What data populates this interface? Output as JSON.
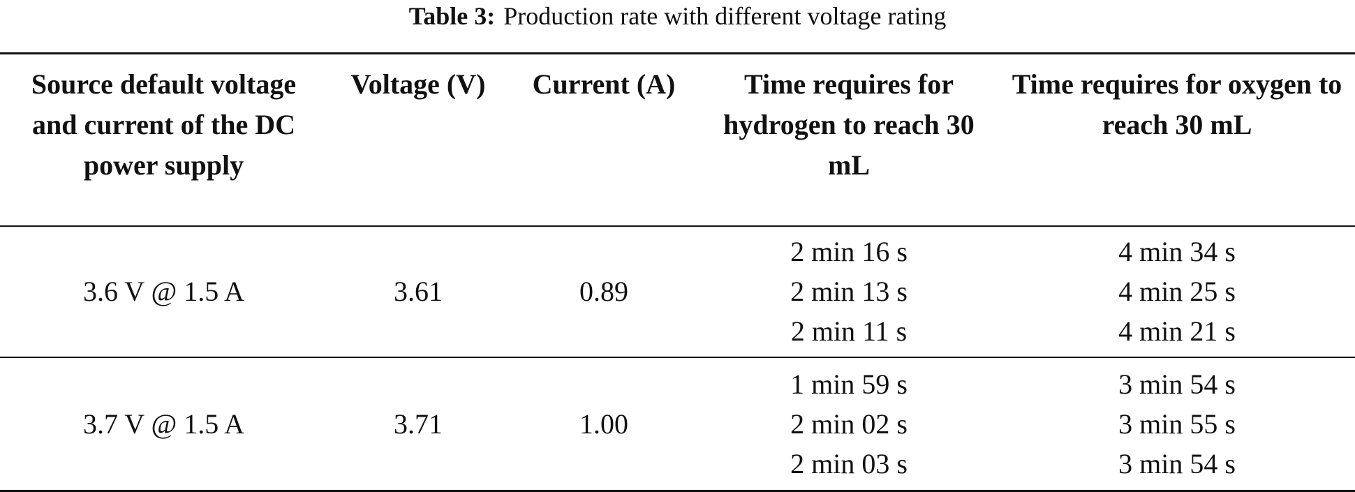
{
  "caption": {
    "label": "Table 3:",
    "text": "Production rate with different voltage rating"
  },
  "table": {
    "headers": [
      "Source default voltage and current of the DC power supply",
      "Voltage (V)",
      "Current (A)",
      "Time requires for hydrogen to reach 30 mL",
      "Time requires for oxygen to reach 30 mL"
    ],
    "rows": [
      {
        "source": "3.6 V @ 1.5 A",
        "voltage": "3.61",
        "current": "0.89",
        "hydrogen_times": [
          "2 min 16 s",
          "2 min 13 s",
          "2 min 11 s"
        ],
        "oxygen_times": [
          "4 min 34 s",
          "4 min 25 s",
          "4 min 21 s"
        ]
      },
      {
        "source": "3.7 V @ 1.5 A",
        "voltage": "3.71",
        "current": "1.00",
        "hydrogen_times": [
          "1 min 59 s",
          "2 min 02 s",
          "2 min 03 s"
        ],
        "oxygen_times": [
          "3 min 54 s",
          "3 min 55 s",
          "3 min 54 s"
        ]
      }
    ]
  }
}
